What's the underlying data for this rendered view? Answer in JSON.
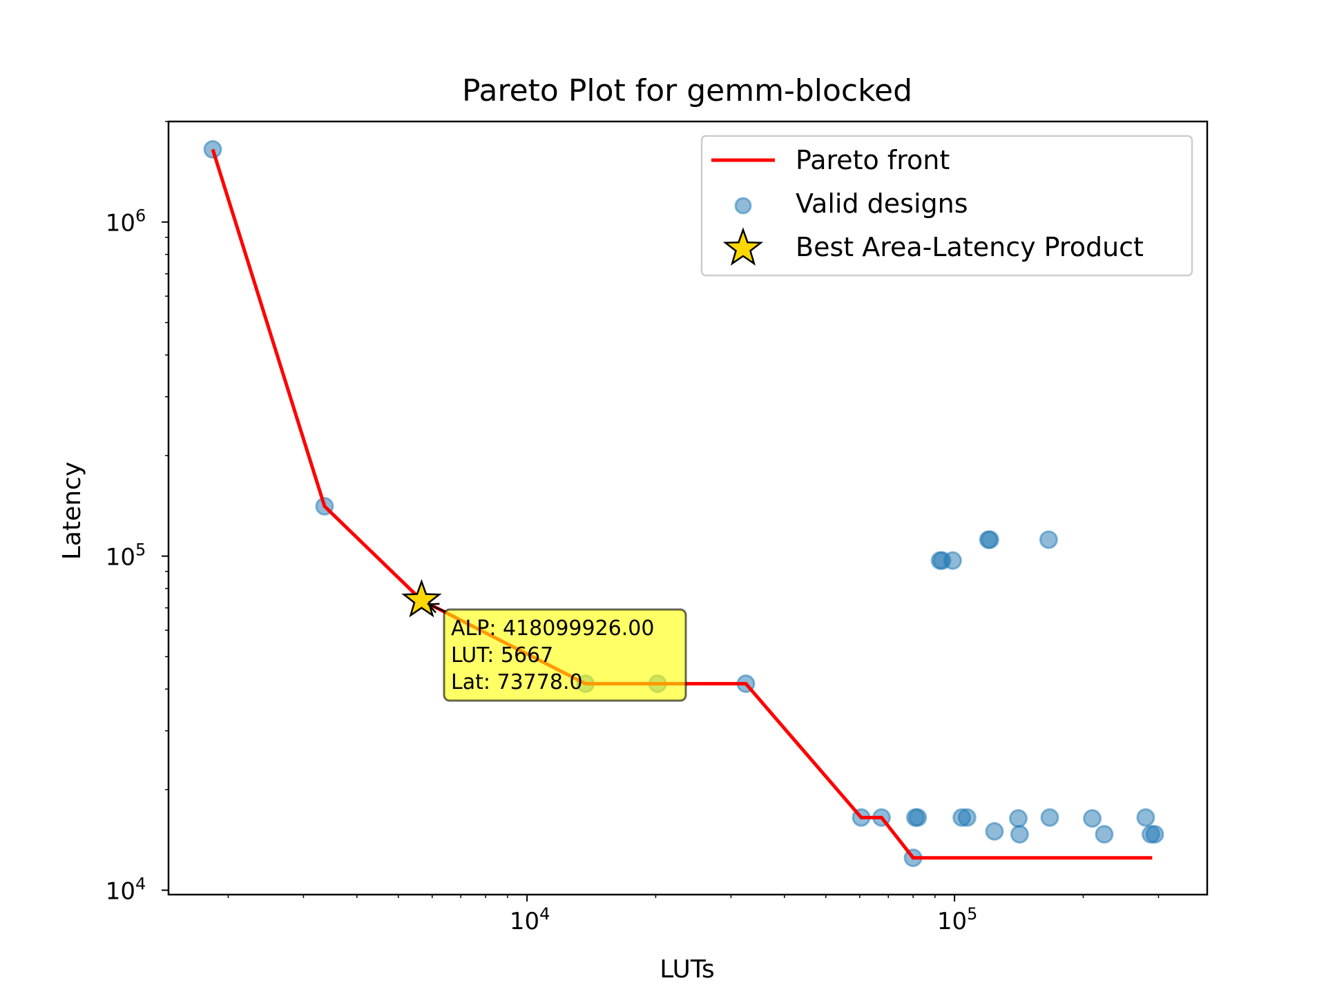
{
  "chart_data": {
    "type": "scatter",
    "title": "Pareto Plot for gemm-blocked",
    "xlabel": "LUTs",
    "ylabel": "Latency",
    "xscale": "log",
    "yscale": "log",
    "xlim": [
      1450,
      390000
    ],
    "ylim": [
      9700,
      2000000
    ],
    "x_ticks": [
      {
        "value": 10000,
        "base": "10",
        "exp": "4"
      },
      {
        "value": 100000,
        "base": "10",
        "exp": "5"
      }
    ],
    "y_ticks": [
      {
        "value": 10000,
        "base": "10",
        "exp": "4"
      },
      {
        "value": 100000,
        "base": "10",
        "exp": "5"
      },
      {
        "value": 1000000,
        "base": "10",
        "exp": "6"
      }
    ],
    "legend": {
      "placement": "upper right",
      "entries": [
        "Pareto front",
        "Valid designs",
        "Best Area-Latency Product"
      ]
    },
    "colors": {
      "pareto": "#ff0000",
      "scatter": "#1f77b4",
      "star": "#ffd700",
      "annotation_box": "#ffff00"
    },
    "series": [
      {
        "name": "Pareto front",
        "kind": "line",
        "points": [
          [
            1840,
            1650000
          ],
          [
            3360,
            141000
          ],
          [
            5667,
            73778
          ],
          [
            13700,
            41500
          ],
          [
            20200,
            41500
          ],
          [
            32500,
            41500
          ],
          [
            60500,
            16500
          ],
          [
            67500,
            16500
          ],
          [
            80000,
            12500
          ],
          [
            290000,
            12500
          ]
        ]
      },
      {
        "name": "Valid designs",
        "kind": "scatter",
        "points": [
          [
            1840,
            1650000
          ],
          [
            3360,
            141000
          ],
          [
            13700,
            41500
          ],
          [
            20200,
            41500
          ],
          [
            32500,
            41500
          ],
          [
            60500,
            16500
          ],
          [
            67500,
            16500
          ],
          [
            80000,
            12500
          ],
          [
            81000,
            16500
          ],
          [
            82000,
            16500
          ],
          [
            104000,
            16500
          ],
          [
            107000,
            16500
          ],
          [
            124000,
            15000
          ],
          [
            141000,
            16400
          ],
          [
            142000,
            14700
          ],
          [
            167000,
            16500
          ],
          [
            210000,
            16400
          ],
          [
            224000,
            14700
          ],
          [
            280000,
            16500
          ],
          [
            288000,
            14700
          ],
          [
            294000,
            14700
          ],
          [
            92500,
            97000
          ],
          [
            93500,
            97000
          ],
          [
            99000,
            97000
          ],
          [
            120000,
            112000
          ],
          [
            121000,
            112000
          ],
          [
            166000,
            112000
          ]
        ]
      },
      {
        "name": "Best Area-Latency Product",
        "kind": "star",
        "points": [
          [
            5667,
            73778
          ]
        ]
      }
    ],
    "annotation": {
      "line1": "ALP: 418099926.00",
      "line2": "LUT: 5667",
      "line3": "Lat: 73778.0"
    }
  }
}
